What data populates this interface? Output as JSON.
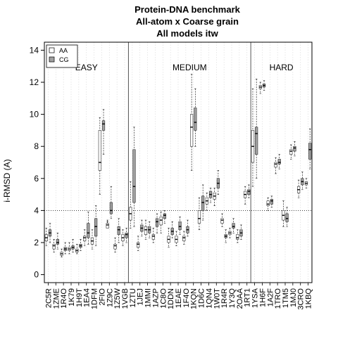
{
  "chart_data": {
    "type": "boxplot",
    "title": [
      "Protein-DNA benchmark",
      "All-atom x Coarse grain",
      "All models itw"
    ],
    "ylabel": "i-RMSD (A)",
    "xlabel": "",
    "ylim": [
      -0.5,
      14.5
    ],
    "yticks": [
      0,
      2,
      4,
      6,
      8,
      10,
      12,
      14
    ],
    "reference_line": 4,
    "legend": {
      "position": "top-left",
      "entries": [
        {
          "label": "AA",
          "color": "#ffffff"
        },
        {
          "label": "CG",
          "color": "#a0a0a0"
        }
      ]
    },
    "regions": [
      {
        "label": "EASY",
        "start": 0,
        "end": 11
      },
      {
        "label": "MEDIUM",
        "start": 11,
        "end": 27
      },
      {
        "label": "HARD",
        "start": 27,
        "end": 35
      }
    ],
    "categories": [
      "2C5R",
      "1ZME",
      "1R4O",
      "1K79",
      "1H9T",
      "1EA4",
      "1DFM",
      "2FIO",
      "1Z9C",
      "1Z5W",
      "1VGB",
      "1ZTU",
      "1JEJ",
      "1MMI",
      "1AZP",
      "1C8O",
      "1DDN",
      "1EAE",
      "1F4O",
      "1KQN",
      "1D6C",
      "1QN4",
      "1W0T",
      "1R4R",
      "1Y3Q",
      "2OAA",
      "1RT1",
      "1YSA",
      "1H6F",
      "1A2F",
      "1TRO",
      "1TM5",
      "1MJ0",
      "3CRO",
      "1KBQ"
    ],
    "categories_visible": [
      "2C5R",
      "1ZME",
      "1R4O",
      "1K79",
      "1H9T",
      "1EA4",
      "1DFM",
      "2FIO",
      "1Z9C",
      "1Z5W",
      "1VGB",
      "1ZTU",
      "1JEJ",
      "1MMI",
      "1AZP",
      "1C8O",
      "1DDN",
      "1EAE",
      "1F4O",
      "1KQN",
      "1D6C",
      "1QN4",
      "1W0T",
      "1R4R",
      "1Y3Q",
      "2OAA",
      "1RT1",
      "1YSA",
      "1H6F",
      "1A2F",
      "1TRO",
      "1TM5",
      "1MJ0",
      "3CRO",
      "1KBQ"
    ],
    "series": [
      {
        "name": "AA",
        "boxes": [
          [
            1.8,
            2.1,
            2.3,
            2.5,
            2.9
          ],
          [
            1.4,
            1.6,
            1.8,
            1.9,
            2.2
          ],
          [
            1.1,
            1.2,
            1.3,
            1.4,
            1.6
          ],
          [
            1.3,
            1.5,
            1.6,
            1.7,
            2.0
          ],
          [
            1.3,
            1.4,
            1.5,
            1.6,
            1.9
          ],
          [
            1.8,
            2.1,
            2.3,
            2.4,
            2.8
          ],
          [
            1.6,
            1.9,
            2.1,
            2.3,
            2.8
          ],
          [
            5.0,
            6.5,
            7.0,
            9.0,
            9.8
          ],
          [
            3.3,
            2.9,
            3.1,
            3.2,
            3.4
          ],
          [
            1.4,
            1.6,
            1.8,
            1.9,
            2.3
          ],
          [
            1.8,
            2.1,
            2.3,
            2.5,
            2.8
          ],
          [
            2.9,
            3.4,
            3.8,
            4.2,
            5.8
          ],
          [
            1.5,
            1.7,
            1.9,
            2.0,
            2.4
          ],
          [
            2.2,
            2.5,
            2.8,
            3.0,
            3.4
          ],
          [
            2.0,
            2.2,
            2.4,
            2.5,
            2.9
          ],
          [
            2.6,
            3.1,
            3.4,
            3.6,
            3.9
          ],
          [
            1.7,
            2.0,
            2.2,
            2.4,
            2.9
          ],
          [
            1.8,
            2.0,
            2.2,
            2.4,
            2.7
          ],
          [
            1.9,
            2.1,
            2.3,
            2.4,
            2.7
          ],
          [
            6.5,
            8.0,
            9.2,
            10.0,
            12.5
          ],
          [
            2.8,
            3.2,
            3.5,
            4.0,
            4.8
          ],
          [
            4.0,
            4.4,
            4.6,
            4.8,
            5.1
          ],
          [
            4.3,
            4.7,
            4.9,
            5.1,
            5.4
          ],
          [
            3.0,
            3.2,
            3.4,
            3.5,
            3.8
          ],
          [
            2.3,
            2.5,
            2.6,
            2.7,
            2.9
          ],
          [
            2.0,
            2.2,
            2.3,
            2.5,
            2.8
          ],
          [
            4.4,
            4.8,
            5.0,
            5.2,
            5.5
          ],
          [
            5.5,
            7.0,
            8.0,
            9.0,
            11.6
          ],
          [
            11.3,
            11.6,
            11.7,
            11.8,
            12.0
          ],
          [
            4.0,
            4.3,
            4.4,
            4.6,
            4.8
          ],
          [
            6.3,
            6.7,
            6.9,
            7.0,
            7.3
          ],
          [
            3.0,
            3.4,
            3.7,
            4.0,
            4.6
          ],
          [
            7.2,
            7.5,
            7.7,
            7.8,
            8.1
          ],
          [
            4.8,
            5.1,
            5.3,
            5.5,
            5.9
          ],
          [
            5.4,
            5.6,
            5.7,
            5.8,
            6.0
          ]
        ]
      },
      {
        "name": "CG",
        "boxes": [
          [
            2.0,
            2.4,
            2.6,
            2.8,
            3.2
          ],
          [
            1.6,
            1.9,
            2.0,
            2.2,
            2.6
          ],
          [
            1.3,
            1.5,
            1.6,
            1.7,
            2.0
          ],
          [
            1.4,
            1.6,
            1.7,
            1.8,
            2.2
          ],
          [
            1.5,
            1.7,
            1.8,
            1.9,
            2.2
          ],
          [
            1.9,
            2.3,
            2.6,
            3.2,
            3.9
          ],
          [
            1.8,
            2.4,
            3.0,
            3.5,
            4.3
          ],
          [
            7.5,
            9.0,
            9.4,
            9.6,
            10.3
          ],
          [
            3.5,
            3.8,
            4.0,
            4.5,
            5.5
          ],
          [
            2.0,
            2.5,
            2.8,
            3.0,
            3.5
          ],
          [
            2.0,
            2.3,
            2.5,
            2.6,
            2.9
          ],
          [
            3.0,
            4.5,
            5.5,
            7.8,
            9.2
          ],
          [
            2.4,
            2.7,
            2.9,
            3.1,
            3.4
          ],
          [
            2.3,
            2.6,
            2.8,
            3.0,
            3.3
          ],
          [
            2.6,
            3.0,
            3.3,
            3.5,
            3.8
          ],
          [
            3.2,
            3.5,
            3.7,
            3.8,
            4.0
          ],
          [
            2.3,
            2.5,
            2.7,
            2.9,
            3.3
          ],
          [
            2.5,
            2.8,
            3.0,
            3.3,
            3.6
          ],
          [
            2.4,
            2.6,
            2.8,
            3.0,
            3.4
          ],
          [
            8.0,
            9.0,
            9.5,
            10.4,
            11.6
          ],
          [
            3.4,
            4.0,
            4.5,
            4.9,
            5.6
          ],
          [
            4.5,
            4.8,
            5.0,
            5.2,
            5.4
          ],
          [
            5.0,
            5.4,
            5.7,
            6.0,
            6.5
          ],
          [
            2.0,
            2.3,
            2.4,
            2.5,
            2.8
          ],
          [
            2.6,
            2.9,
            3.0,
            3.2,
            3.5
          ],
          [
            2.2,
            2.4,
            2.6,
            2.8,
            3.1
          ],
          [
            4.8,
            5.0,
            5.2,
            5.3,
            5.6
          ],
          [
            6.0,
            7.5,
            8.8,
            9.2,
            12.2
          ],
          [
            11.5,
            11.7,
            11.8,
            11.9,
            12.1
          ],
          [
            4.2,
            4.4,
            4.6,
            4.7,
            4.9
          ],
          [
            6.6,
            6.9,
            7.0,
            7.2,
            7.5
          ],
          [
            3.0,
            3.3,
            3.5,
            3.8,
            4.2
          ],
          [
            7.4,
            7.7,
            7.9,
            8.0,
            8.3
          ],
          [
            5.3,
            5.6,
            5.8,
            6.0,
            6.4
          ],
          [
            6.6,
            7.2,
            7.8,
            8.2,
            9.1
          ]
        ]
      }
    ]
  }
}
